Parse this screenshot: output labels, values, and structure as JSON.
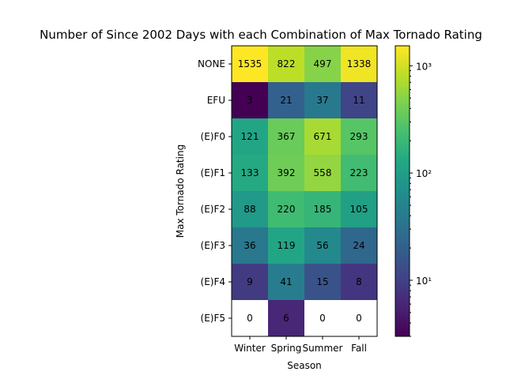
{
  "chart_data": {
    "type": "heatmap",
    "title": "Number of Since 2002 Days with each Combination of Max Tornado Rating",
    "xlabel": "Season",
    "ylabel": "Max Tornado Rating",
    "x_categories": [
      "Winter",
      "Spring",
      "Summer",
      "Fall"
    ],
    "y_categories": [
      "NONE",
      "EFU",
      "(E)F0",
      "(E)F1",
      "(E)F2",
      "(E)F3",
      "(E)F4",
      "(E)F5"
    ],
    "values": [
      [
        1535,
        822,
        497,
        1338
      ],
      [
        3,
        21,
        37,
        11
      ],
      [
        121,
        367,
        671,
        293
      ],
      [
        133,
        392,
        558,
        223
      ],
      [
        88,
        220,
        185,
        105
      ],
      [
        36,
        119,
        56,
        24
      ],
      [
        9,
        41,
        15,
        8
      ],
      [
        0,
        6,
        0,
        0
      ]
    ],
    "color_scale": "log",
    "colormap": "viridis",
    "zero_color": "#ffffff",
    "colorbar": {
      "range": [
        3,
        1535
      ],
      "ticks": [
        {
          "value": 10,
          "label": "10¹"
        },
        {
          "value": 100,
          "label": "10²"
        },
        {
          "value": 1000,
          "label": "10³"
        }
      ]
    }
  }
}
